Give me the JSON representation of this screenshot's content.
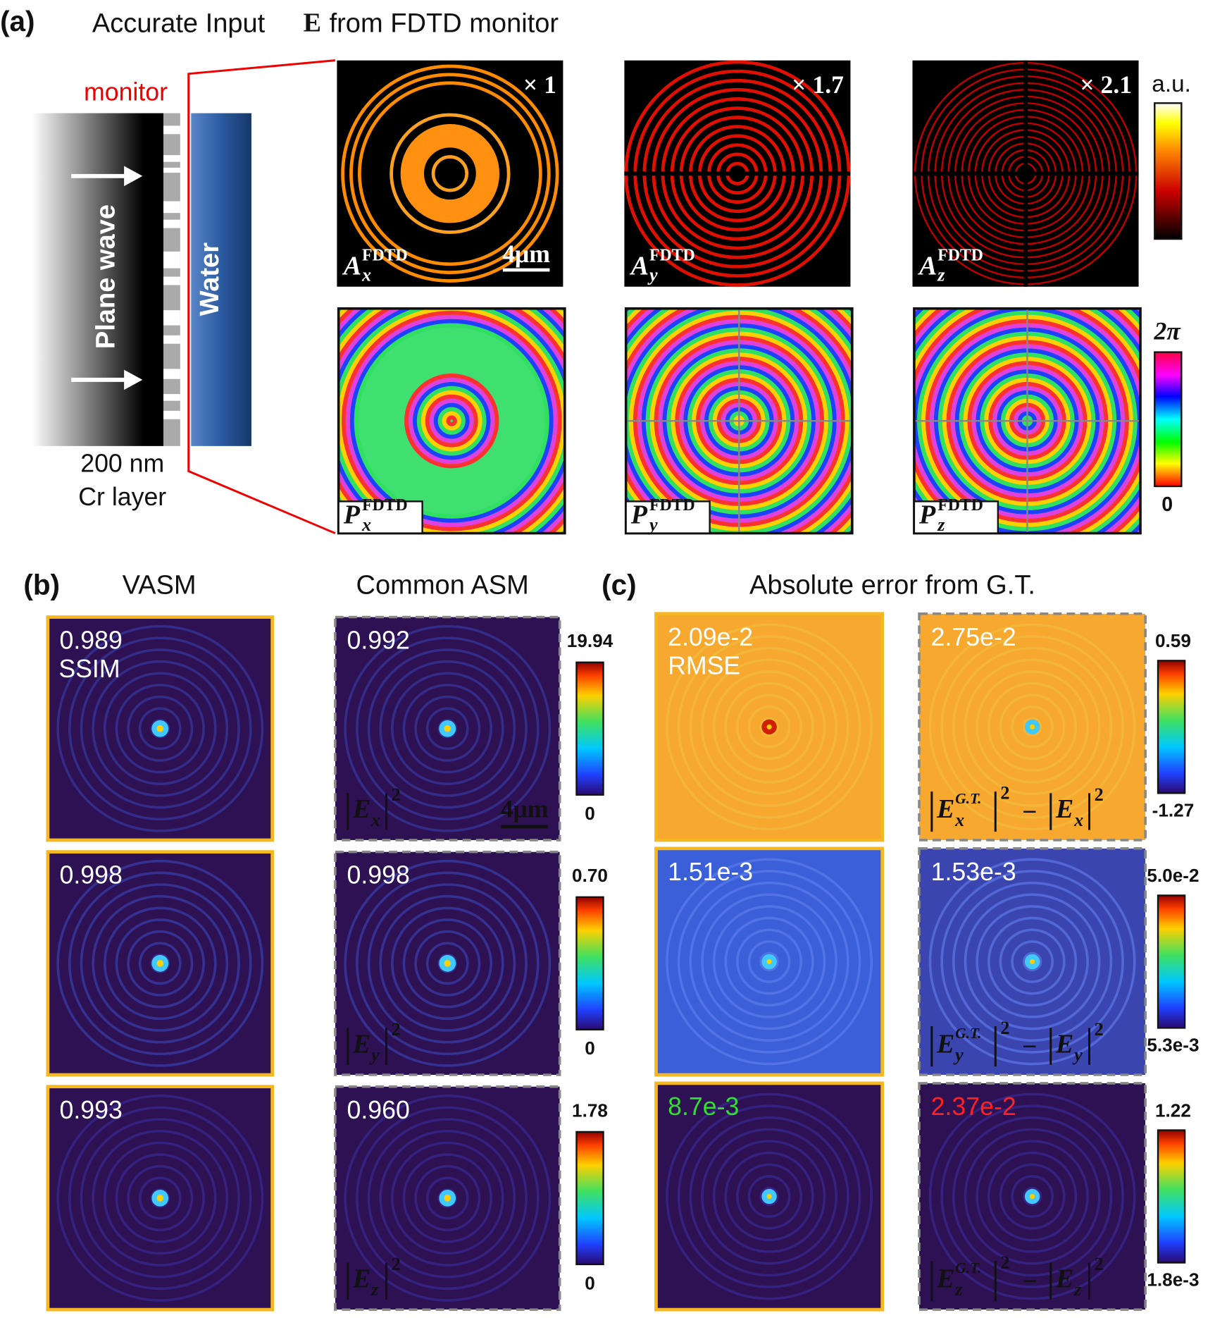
{
  "panel_a": {
    "label": "(a)",
    "title_pre": "Accurate Input",
    "title_symbol": "E⃗",
    "title_post": "from FDTD monitor",
    "schematic": {
      "monitor": "monitor",
      "plane_wave": "Plane wave",
      "water": "Water",
      "layer_thickness": "200 nm",
      "layer_name": "Cr layer"
    },
    "amplitude": [
      {
        "multiplier": "× 1",
        "symbol": "A",
        "component": "x",
        "superscript": "FDTD"
      },
      {
        "multiplier": "× 1.7",
        "symbol": "A",
        "component": "y",
        "superscript": "FDTD"
      },
      {
        "multiplier": "× 2.1",
        "symbol": "A",
        "component": "z",
        "superscript": "FDTD"
      }
    ],
    "phase": [
      {
        "symbol": "P",
        "component": "x",
        "superscript": "FDTD"
      },
      {
        "symbol": "P",
        "component": "y",
        "superscript": "FDTD"
      },
      {
        "symbol": "P",
        "component": "z",
        "superscript": "FDTD"
      }
    ],
    "scale_bar": "4μm",
    "amplitude_colorbar": "a.u.",
    "phase_colorbar_max": "2π",
    "phase_colorbar_min": "0"
  },
  "panel_b": {
    "label": "(b)",
    "columns": [
      "VASM",
      "Common ASM"
    ],
    "metric": "SSIM",
    "scale_bar": "4μm",
    "rows": [
      {
        "vasm": "0.989",
        "asm": "0.992",
        "component": "x",
        "colorbar_max": "19.94",
        "colorbar_min": "0"
      },
      {
        "vasm": "0.998",
        "asm": "0.998",
        "component": "y",
        "colorbar_max": "0.70",
        "colorbar_min": "0"
      },
      {
        "vasm": "0.993",
        "asm": "0.960",
        "component": "z",
        "colorbar_max": "1.78",
        "colorbar_min": "0"
      }
    ]
  },
  "panel_c": {
    "label": "(c)",
    "title": "Absolute error from G.T.",
    "metric": "RMSE",
    "rows": [
      {
        "left": "2.09e-2",
        "right": "2.75e-2",
        "component": "x",
        "colorbar_max": "0.59",
        "colorbar_min": "-1.27"
      },
      {
        "left": "1.51e-3",
        "right": "1.53e-3",
        "component": "y",
        "colorbar_max": "5.0e-2",
        "colorbar_min": "5.3e-3"
      },
      {
        "left": "8.7e-3",
        "right": "2.37e-2",
        "component": "z",
        "colorbar_max": "1.22",
        "colorbar_min": "1.8e-3"
      }
    ]
  },
  "field": {
    "symbol": "E",
    "power": "2",
    "ground_truth": "G.T.",
    "minus": "−"
  }
}
